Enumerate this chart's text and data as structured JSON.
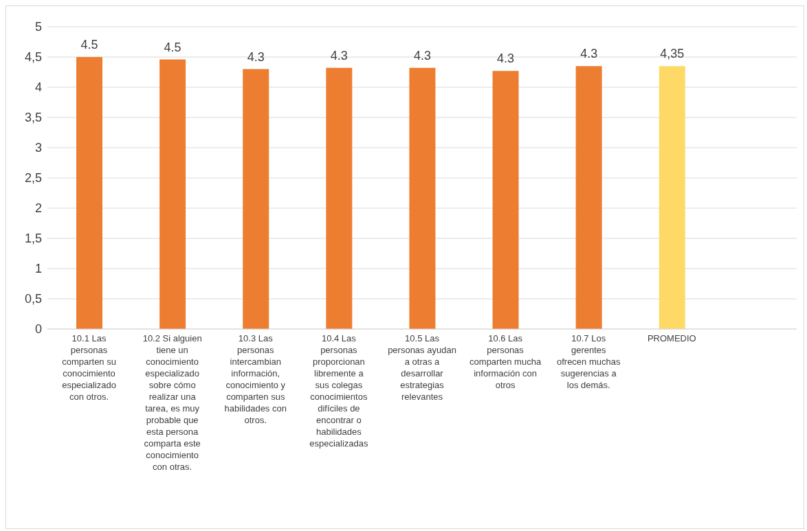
{
  "chart_data": {
    "type": "bar",
    "categories": [
      "10.1 Las personas comparten su conocimiento especializado con otros.",
      "10.2 Si alguien tiene un conocimiento especializado sobre cómo realizar una tarea, es muy probable que esta persona comparta este conocimiento con otras.",
      "10.3 Las personas intercambian información, conocimiento y comparten sus habilidades con otros.",
      "10.4 Las personas proporcionan libremente a sus colegas conocimientos difíciles de encontrar o habilidades especializadas",
      "10.5 Las personas ayudan a otras a desarrollar estrategias relevantes",
      "10.6 Las personas comparten mucha información con otros",
      "10.7 Los gerentes ofrecen muchas sugerencias a los demás.",
      "PROMEDIO",
      null
    ],
    "values": [
      4.5,
      4.46,
      4.3,
      4.32,
      4.32,
      4.27,
      4.35,
      4.35,
      null
    ],
    "colors": [
      "#ed7d31",
      "#ed7d31",
      "#ed7d31",
      "#ed7d31",
      "#ed7d31",
      "#ed7d31",
      "#ed7d31",
      "#ffd966",
      "#ed7d31"
    ],
    "value_labels": [
      "4.5",
      "4.5",
      "4.3",
      "4.3",
      "4.3",
      "4.3",
      "4.3",
      "4,35",
      null
    ],
    "ylim": [
      0,
      5
    ],
    "yticks": [
      0,
      {
        "value": 0.5,
        "label": "0,5"
      },
      1,
      {
        "value": 1.5,
        "label": "1,5"
      },
      2,
      {
        "value": 2.5,
        "label": "2,5"
      },
      3,
      {
        "value": 3.5,
        "label": "3,5"
      },
      4,
      {
        "value": 4.5,
        "label": "4,5"
      },
      5
    ],
    "grid": "y"
  }
}
